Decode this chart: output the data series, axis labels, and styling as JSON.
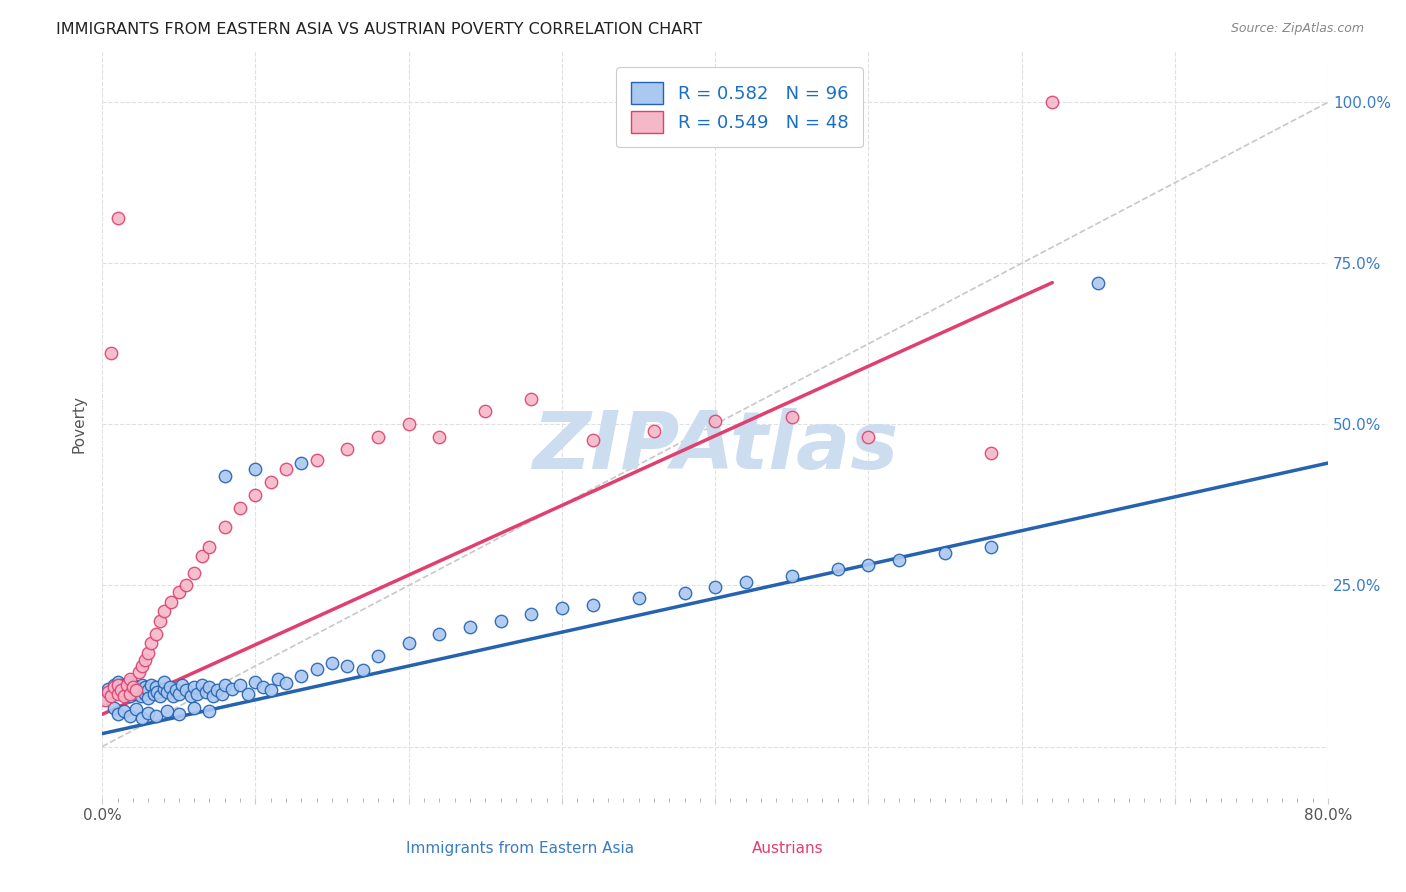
{
  "title": "IMMIGRANTS FROM EASTERN ASIA VS AUSTRIAN POVERTY CORRELATION CHART",
  "source": "Source: ZipAtlas.com",
  "ylabel": "Poverty",
  "ytick_labels": [
    "",
    "25.0%",
    "50.0%",
    "75.0%",
    "100.0%"
  ],
  "ytick_vals": [
    0.0,
    0.25,
    0.5,
    0.75,
    1.0
  ],
  "xlim": [
    0.0,
    0.8
  ],
  "ylim": [
    -0.08,
    1.08
  ],
  "legend_color1": "#aac8f0",
  "legend_color2": "#f4b8c8",
  "scatter_color1": "#aac8f0",
  "scatter_color2": "#f4b8c8",
  "line_color1": "#2563b0",
  "line_color2": "#e04070",
  "diag_line_color": "#c8c8c8",
  "background_color": "#ffffff",
  "grid_color": "#e0e0e0",
  "title_color": "#222222",
  "axis_label_color": "#555555",
  "source_color": "#888888",
  "watermark": "ZIPAtlas",
  "watermark_color": "#ccddf0",
  "blue_scatter_x": [
    0.002,
    0.004,
    0.006,
    0.008,
    0.01,
    0.01,
    0.012,
    0.012,
    0.014,
    0.015,
    0.016,
    0.018,
    0.018,
    0.02,
    0.02,
    0.022,
    0.022,
    0.024,
    0.025,
    0.026,
    0.028,
    0.028,
    0.03,
    0.03,
    0.032,
    0.034,
    0.035,
    0.036,
    0.038,
    0.04,
    0.04,
    0.042,
    0.044,
    0.046,
    0.048,
    0.05,
    0.052,
    0.055,
    0.058,
    0.06,
    0.062,
    0.065,
    0.068,
    0.07,
    0.072,
    0.075,
    0.078,
    0.08,
    0.085,
    0.09,
    0.095,
    0.1,
    0.105,
    0.11,
    0.115,
    0.12,
    0.13,
    0.14,
    0.15,
    0.16,
    0.17,
    0.18,
    0.2,
    0.22,
    0.24,
    0.26,
    0.28,
    0.3,
    0.32,
    0.35,
    0.38,
    0.4,
    0.42,
    0.45,
    0.48,
    0.5,
    0.52,
    0.55,
    0.58,
    0.008,
    0.01,
    0.014,
    0.018,
    0.022,
    0.026,
    0.03,
    0.035,
    0.042,
    0.05,
    0.06,
    0.07,
    0.08,
    0.1,
    0.13,
    0.65
  ],
  "blue_scatter_y": [
    0.075,
    0.09,
    0.08,
    0.095,
    0.085,
    0.1,
    0.088,
    0.095,
    0.082,
    0.092,
    0.088,
    0.078,
    0.1,
    0.085,
    0.095,
    0.082,
    0.092,
    0.088,
    0.078,
    0.095,
    0.082,
    0.092,
    0.088,
    0.075,
    0.095,
    0.082,
    0.092,
    0.085,
    0.078,
    0.09,
    0.1,
    0.085,
    0.092,
    0.078,
    0.088,
    0.082,
    0.095,
    0.088,
    0.078,
    0.092,
    0.082,
    0.095,
    0.085,
    0.092,
    0.078,
    0.088,
    0.082,
    0.095,
    0.09,
    0.095,
    0.082,
    0.1,
    0.092,
    0.088,
    0.105,
    0.098,
    0.11,
    0.12,
    0.13,
    0.125,
    0.118,
    0.14,
    0.16,
    0.175,
    0.185,
    0.195,
    0.205,
    0.215,
    0.22,
    0.23,
    0.238,
    0.248,
    0.255,
    0.265,
    0.275,
    0.282,
    0.29,
    0.3,
    0.31,
    0.06,
    0.05,
    0.055,
    0.048,
    0.058,
    0.045,
    0.052,
    0.048,
    0.055,
    0.05,
    0.06,
    0.055,
    0.42,
    0.43,
    0.44,
    0.72
  ],
  "pink_scatter_x": [
    0.002,
    0.004,
    0.006,
    0.008,
    0.01,
    0.01,
    0.012,
    0.014,
    0.016,
    0.018,
    0.018,
    0.02,
    0.022,
    0.024,
    0.026,
    0.028,
    0.03,
    0.032,
    0.035,
    0.038,
    0.04,
    0.045,
    0.05,
    0.055,
    0.06,
    0.065,
    0.07,
    0.08,
    0.09,
    0.1,
    0.11,
    0.12,
    0.14,
    0.16,
    0.18,
    0.2,
    0.22,
    0.25,
    0.28,
    0.32,
    0.36,
    0.4,
    0.45,
    0.5,
    0.58,
    0.62,
    0.006,
    0.01
  ],
  "pink_scatter_y": [
    0.072,
    0.085,
    0.078,
    0.092,
    0.082,
    0.095,
    0.088,
    0.078,
    0.095,
    0.082,
    0.105,
    0.092,
    0.088,
    0.115,
    0.125,
    0.135,
    0.145,
    0.16,
    0.175,
    0.195,
    0.21,
    0.225,
    0.24,
    0.25,
    0.27,
    0.295,
    0.31,
    0.34,
    0.37,
    0.39,
    0.41,
    0.43,
    0.445,
    0.462,
    0.48,
    0.5,
    0.48,
    0.52,
    0.54,
    0.475,
    0.49,
    0.505,
    0.512,
    0.48,
    0.455,
    1.0,
    0.61,
    0.82
  ],
  "blue_line_x": [
    0.0,
    0.8
  ],
  "blue_line_y": [
    0.02,
    0.44
  ],
  "pink_line_x": [
    0.0,
    0.62
  ],
  "pink_line_y": [
    0.05,
    0.72
  ],
  "diag_line_x": [
    0.0,
    0.8
  ],
  "diag_line_y": [
    0.0,
    1.0
  ]
}
